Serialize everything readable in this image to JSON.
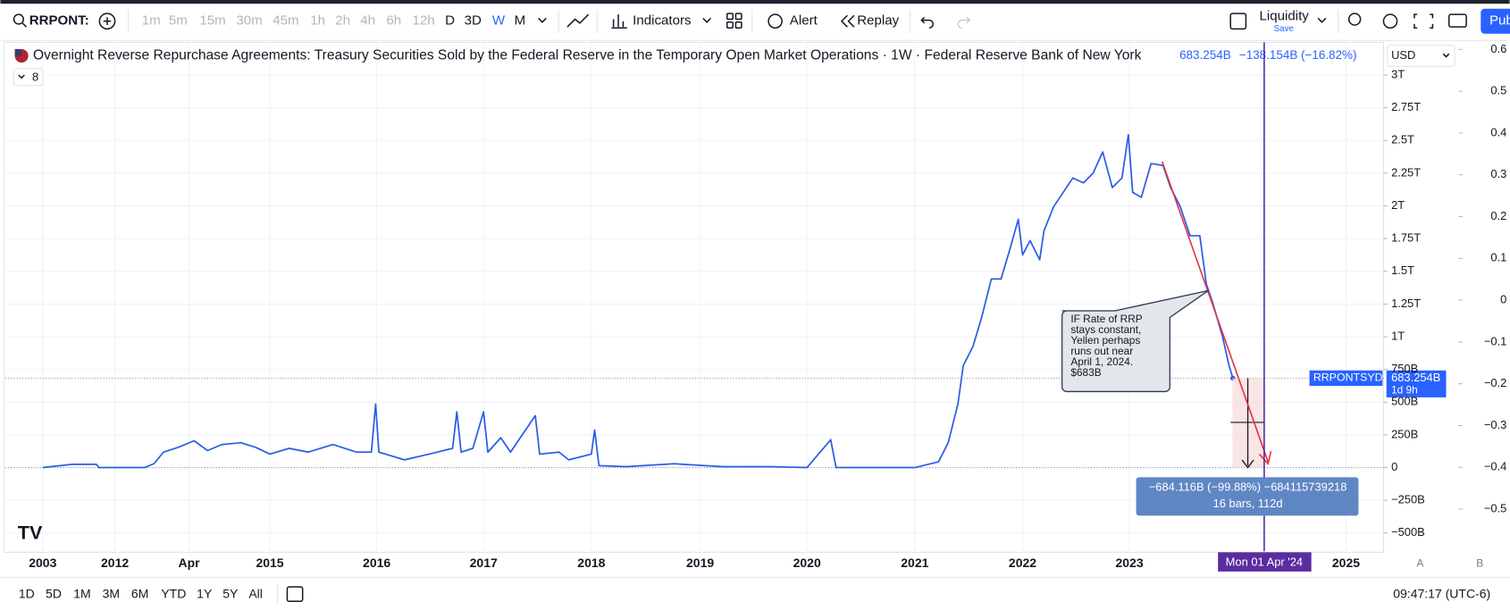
{
  "toolbar": {
    "symbol": "RRPONT:",
    "intervals": [
      "1m",
      "5m",
      "15m",
      "30m",
      "45m",
      "1h",
      "2h",
      "4h",
      "6h",
      "12h",
      "D",
      "3D",
      "W",
      "M"
    ],
    "indicators": "Indicators",
    "alert": "Alert",
    "replay": "Replay",
    "layout_name": "Liquidity",
    "save": "Save",
    "publish": "Pub"
  },
  "chart_data": {
    "type": "line",
    "title": "Overnight Reverse Repurchase Agreements: Treasury Securities Sold by the Federal Reserve in the Temporary Open Market Operations · 1W · Federal Reserve Bank of New York",
    "last_value": "683.254B",
    "change": "−138.154B (−16.82%)",
    "indicator_count": 8,
    "currency": "USD",
    "x": [
      2003,
      2006.7,
      2009.7,
      2010,
      2012.5,
      2012.66,
      2012.82,
      2013.07,
      2013.36,
      2013.65,
      2013.96,
      2014.37,
      2014.69,
      2015,
      2015.18,
      2015.36,
      2015.59,
      2015.81,
      2015.95,
      2015.99,
      2016.02,
      2016.26,
      2016.49,
      2016.71,
      2016.75,
      2016.79,
      2016.9,
      2017,
      2017.04,
      2017.16,
      2017.25,
      2017.48,
      2017.52,
      2017.7,
      2017.79,
      2018,
      2018.03,
      2018.07,
      2018.32,
      2018.76,
      2019.21,
      2019.66,
      2020,
      2020.22,
      2020.27,
      2021,
      2021.22,
      2021.31,
      2021.4,
      2021.45,
      2021.54,
      2021.62,
      2021.71,
      2021.8,
      2021.88,
      2021.96,
      2022,
      2022.07,
      2022.16,
      2022.2,
      2022.29,
      2022.38,
      2022.47,
      2022.57,
      2022.66,
      2022.75,
      2022.84,
      2022.93,
      2022.99,
      2023.03,
      2023.11,
      2023.2,
      2023.31,
      2023.38,
      2023.47,
      2023.56,
      2023.65,
      2023.71,
      2023.77,
      2023.86,
      2023.92,
      2023.955
    ],
    "series": [
      {
        "name": "RRPONTSYD",
        "color": "#2b5ce6",
        "values": [
          0,
          25,
          25,
          0,
          0,
          30,
          118,
          155,
          205,
          130,
          176,
          190,
          155,
          103,
          147,
          118,
          176,
          118,
          118,
          485,
          118,
          59,
          103,
          147,
          426,
          118,
          147,
          426,
          118,
          228,
          118,
          397,
          103,
          118,
          59,
          103,
          287,
          15,
          7,
          29,
          7,
          7,
          0,
          213,
          0,
          0,
          44,
          190,
          485,
          780,
          926,
          1147,
          1441,
          1441,
          1662,
          1897,
          1625,
          1735,
          1588,
          1809,
          1993,
          2103,
          2213,
          2176,
          2250,
          2412,
          2140,
          2213,
          2544,
          2103,
          2066,
          2324,
          2309,
          2140,
          1993,
          1772,
          1772,
          1404,
          1257,
          1000,
          779,
          683.254
        ]
      }
    ],
    "xlim": [
      1998.3,
      2025.36
    ],
    "xticks": [
      2003,
      2012,
      {
        "value": 2013.25,
        "label": "Apr"
      },
      2015,
      2016,
      2017,
      2018,
      2019,
      2020,
      2021,
      2022,
      2023,
      2025
    ],
    "ylim": [
      -640,
      3250
    ],
    "yticks": [
      {
        "value": -500,
        "label": "−500B"
      },
      {
        "value": -250,
        "label": "−250B"
      },
      0,
      {
        "value": 250,
        "label": "250B"
      },
      {
        "value": 500,
        "label": "500B"
      },
      {
        "value": 750,
        "label": "750B"
      },
      {
        "value": 1000,
        "label": "1T"
      },
      {
        "value": 1250,
        "label": "1.25T"
      },
      {
        "value": 1500,
        "label": "1.5T"
      },
      {
        "value": 1750,
        "label": "1.75T"
      },
      {
        "value": 2000,
        "label": "2T"
      },
      {
        "value": 2250,
        "label": "2.25T"
      },
      {
        "value": 2500,
        "label": "2.5T"
      },
      {
        "value": 2750,
        "label": "2.75T"
      },
      {
        "value": 3000,
        "label": "3T"
      }
    ],
    "y2lim": [
      -0.601,
      0.617
    ],
    "y2ticks": [
      0.6,
      0.5,
      0.4,
      0.3,
      0.2,
      0.1,
      0,
      {
        "value": -0.1,
        "label": "−0.1"
      },
      {
        "value": -0.2,
        "label": "−0.2"
      },
      {
        "value": -0.3,
        "label": "−0.3"
      },
      {
        "value": -0.4,
        "label": "−0.4"
      },
      {
        "value": -0.5,
        "label": "−0.5"
      }
    ],
    "grid": true
  },
  "annotations": {
    "note": [
      "IF Rate of RRP",
      "stays constant,",
      "Yellen perhaps",
      "runs out near",
      "April 1, 2024.",
      "$683B"
    ],
    "measure": [
      "−684.116B (−99.88%) −684115739218",
      "16 bars, 112d"
    ],
    "crosshair_date": "Mon 01 Apr '24",
    "price_label_value": "683.254B",
    "countdown": "1d 9h"
  },
  "scale_buttons": [
    "A",
    "B"
  ],
  "bottom_bar": {
    "ranges": [
      "1D",
      "5D",
      "1M",
      "3M",
      "6M",
      "YTD",
      "1Y",
      "5Y",
      "All"
    ],
    "clock": "09:47:17 (UTC-6)"
  }
}
